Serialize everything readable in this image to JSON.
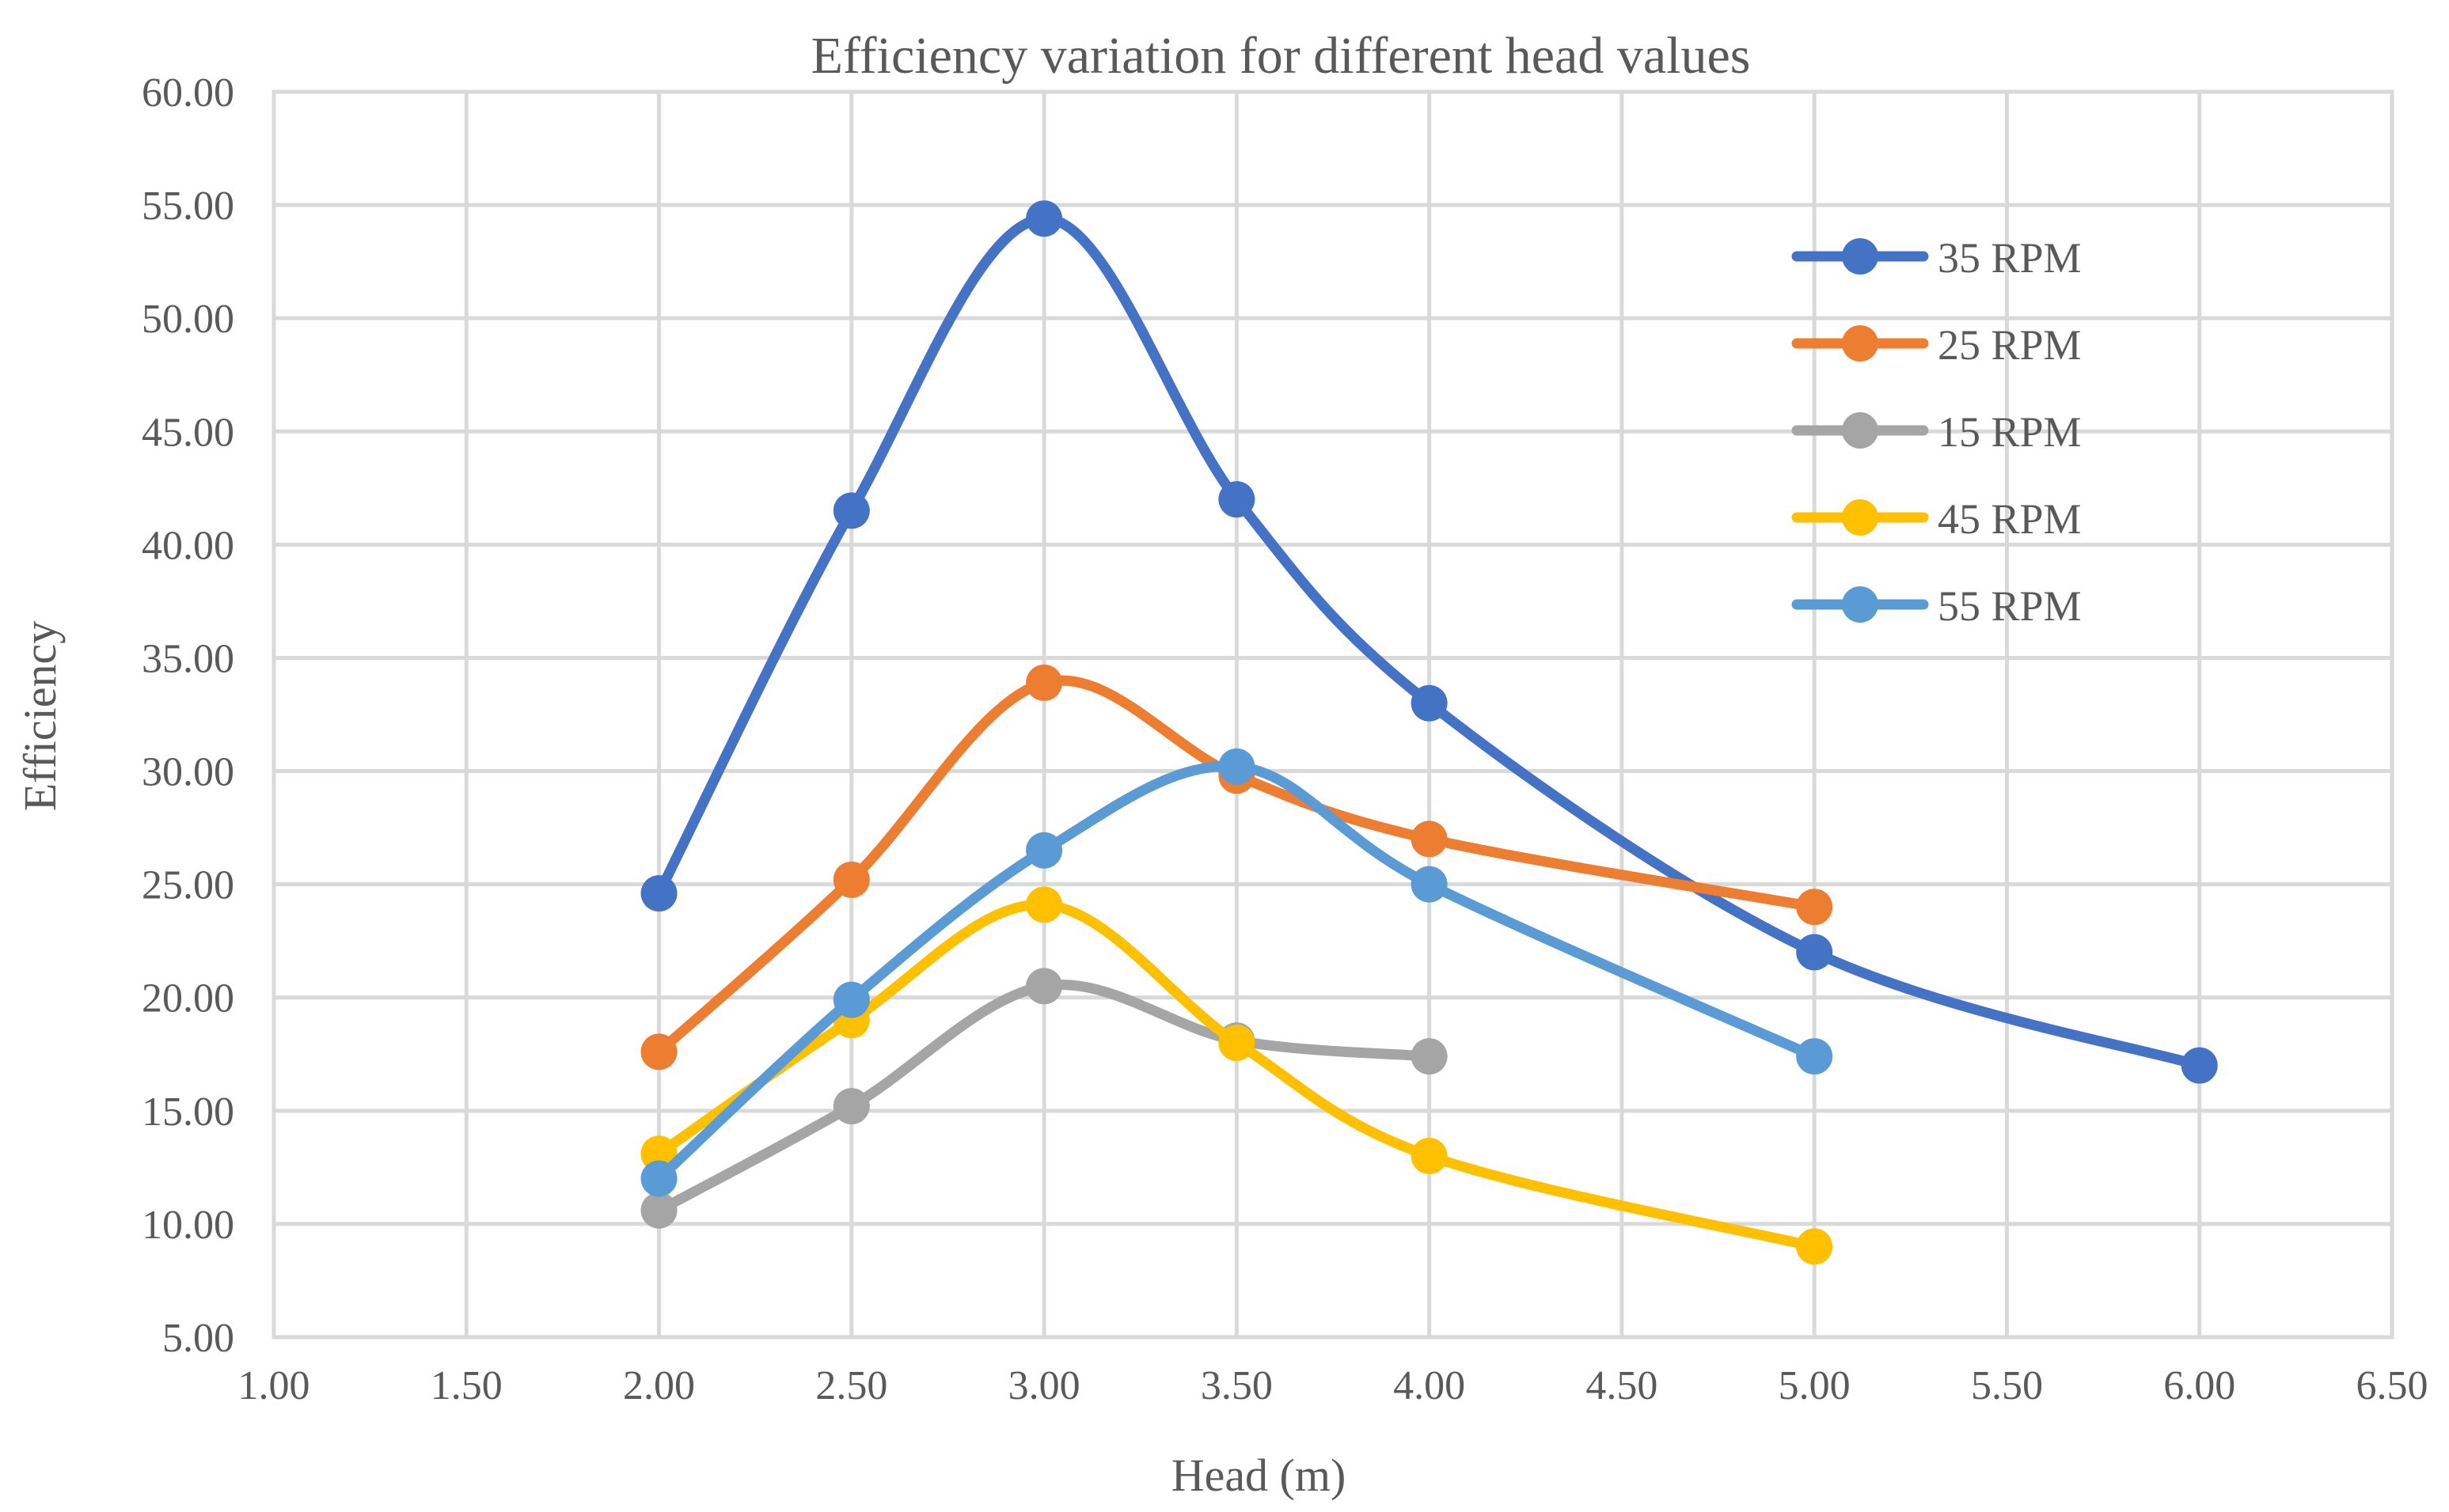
{
  "chart_data": {
    "type": "scatter",
    "subtype": "smooth-lines-with-markers",
    "title": "Efficiency variation for different head values",
    "xlabel": "Head (m)",
    "ylabel": "Efficiency",
    "xlim": [
      1.0,
      6.5
    ],
    "ylim": [
      5.0,
      60.0
    ],
    "xticks": [
      1.0,
      1.5,
      2.0,
      2.5,
      3.0,
      3.5,
      4.0,
      4.5,
      5.0,
      5.5,
      6.0,
      6.5
    ],
    "yticks": [
      5.0,
      10.0,
      15.0,
      20.0,
      25.0,
      30.0,
      35.0,
      40.0,
      45.0,
      50.0,
      55.0,
      60.0
    ],
    "xtick_labels": [
      "1.00",
      "1.50",
      "2.00",
      "2.50",
      "3.00",
      "3.50",
      "4.00",
      "4.50",
      "5.00",
      "5.50",
      "6.00",
      "6.50"
    ],
    "ytick_labels": [
      "5.00",
      "10.00",
      "15.00",
      "20.00",
      "25.00",
      "30.00",
      "35.00",
      "40.00",
      "45.00",
      "50.00",
      "55.00",
      "60.00"
    ],
    "grid": true,
    "legend_position": "top-right",
    "series": [
      {
        "name": "35 RPM",
        "color": "#4472c4",
        "x": [
          2.0,
          2.5,
          3.0,
          3.5,
          4.0,
          5.0,
          6.0
        ],
        "y": [
          24.6,
          41.5,
          54.4,
          42.0,
          33.0,
          22.0,
          17.0
        ]
      },
      {
        "name": "25 RPM",
        "color": "#ed7d31",
        "x": [
          2.0,
          2.5,
          3.0,
          3.5,
          4.0,
          5.0
        ],
        "y": [
          17.6,
          25.2,
          33.9,
          29.8,
          27.0,
          24.0
        ]
      },
      {
        "name": "15 RPM",
        "color": "#a5a5a5",
        "x": [
          2.0,
          2.5,
          3.0,
          3.5,
          4.0
        ],
        "y": [
          10.6,
          15.2,
          20.5,
          18.1,
          17.4
        ]
      },
      {
        "name": "45 RPM",
        "color": "#ffc000",
        "x": [
          2.0,
          2.5,
          3.0,
          3.5,
          4.0,
          5.0
        ],
        "y": [
          13.1,
          19.0,
          24.1,
          18.0,
          13.0,
          9.0
        ]
      },
      {
        "name": "55 RPM",
        "color": "#5b9bd5",
        "x": [
          2.0,
          2.5,
          3.0,
          3.5,
          4.0,
          5.0
        ],
        "y": [
          12.0,
          19.9,
          26.5,
          30.2,
          25.0,
          17.4
        ]
      }
    ]
  }
}
